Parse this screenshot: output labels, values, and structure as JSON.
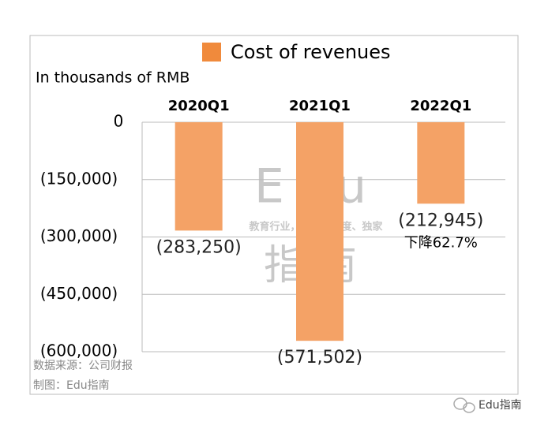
{
  "chart_data": {
    "type": "bar",
    "legend": "Cost of revenues",
    "unit_label": "In thousands of RMB",
    "categories": [
      "2020Q1",
      "2021Q1",
      "2022Q1"
    ],
    "values": [
      -283250,
      -571502,
      -212945
    ],
    "value_labels": [
      "(283,250)",
      "(571,502)",
      "(212,945)"
    ],
    "color": "#f4a266",
    "legend_color": "#f08a3c",
    "annotation": "下降62.7%",
    "ylim": [
      -600000,
      0
    ],
    "yticks": [
      0,
      {
        "value": -150000,
        "label": "(150,000)"
      },
      {
        "value": -300000,
        "label": "(300,000)"
      },
      {
        "value": -450000,
        "label": "(450,000)"
      },
      {
        "value": -600000,
        "label": "(600,000)"
      }
    ],
    "grid": true
  },
  "watermark": {
    "top": "Edu",
    "middle": "教育行业，前沿、深度、独家",
    "bottom": "指南"
  },
  "source": [
    "数据来源：公司财报",
    "制图：Edu指南"
  ],
  "brand": "Edu指南"
}
